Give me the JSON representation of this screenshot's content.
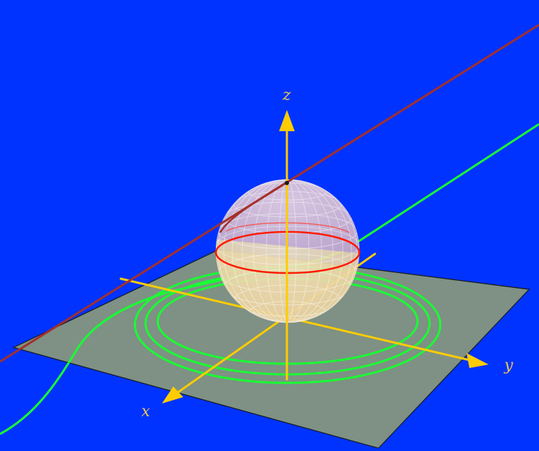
{
  "axes": {
    "x_label": "x",
    "y_label": "y",
    "z_label": "z"
  },
  "colors": {
    "background": "#0033ff",
    "plane_fill": "#7e9184",
    "plane_edge": "#1a1a1a",
    "axis": "#ffcc00",
    "axis_label": "#e7c45a",
    "sphere_upper": "#c8b3d8",
    "sphere_lower": "#efd9a9",
    "sphere_grid": "#ffffff",
    "equator": "#ff1a00",
    "curve_red": "#a4302a",
    "curve_green": "#19ff33"
  }
}
